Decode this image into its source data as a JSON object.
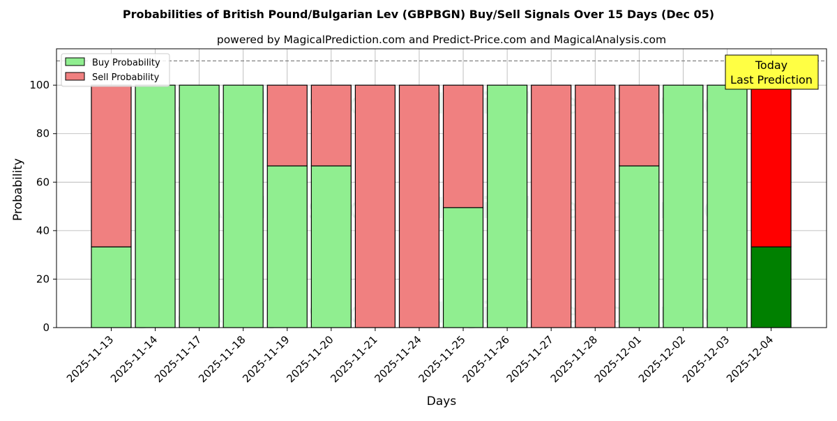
{
  "chart_data": {
    "type": "bar",
    "stacked": true,
    "title": "Probabilities of British Pound/Bulgarian Lev (GBPBGN) Buy/Sell Signals Over 15 Days (Dec 05)",
    "subtitle": "powered by MagicalPrediction.com and Predict-Price.com and MagicalAnalysis.com",
    "xlabel": "Days",
    "ylabel": "Probability",
    "ylim": [
      0,
      115
    ],
    "yticks": [
      0,
      20,
      40,
      60,
      80,
      100
    ],
    "grid": true,
    "reference_line": 110,
    "legend_position": "top-left",
    "categories": [
      "2025-11-13",
      "2025-11-14",
      "2025-11-17",
      "2025-11-18",
      "2025-11-19",
      "2025-11-20",
      "2025-11-21",
      "2025-11-24",
      "2025-11-25",
      "2025-11-26",
      "2025-11-27",
      "2025-11-28",
      "2025-12-01",
      "2025-12-02",
      "2025-12-03",
      "2025-12-04"
    ],
    "series": [
      {
        "name": "Buy Probability",
        "color": "#90ee90",
        "highlight_color": "#008000",
        "values": [
          33.3,
          100,
          100,
          100,
          66.7,
          66.7,
          0,
          0,
          49.5,
          100,
          0,
          0,
          66.7,
          100,
          100,
          33.3
        ]
      },
      {
        "name": "Sell Probability",
        "color": "#f08080",
        "highlight_color": "#ff0000",
        "values": [
          66.7,
          0,
          0,
          0,
          33.3,
          33.3,
          100,
          100,
          50.5,
          0,
          100,
          100,
          33.3,
          0,
          0,
          66.7
        ]
      }
    ],
    "highlight_index": 15,
    "annotation": {
      "line1": "Today",
      "line2": "Last Prediction",
      "background": "#ffff44"
    },
    "watermarks": [
      "MagicalAnalysis.com",
      "MagicalPrediction.com"
    ]
  }
}
